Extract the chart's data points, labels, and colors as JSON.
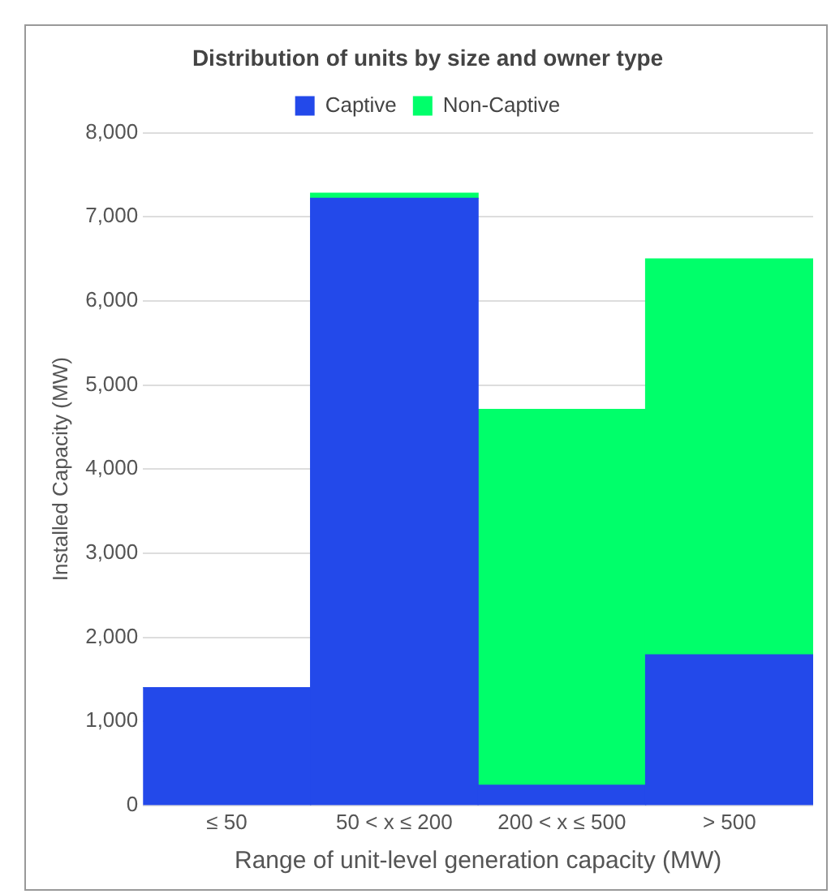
{
  "chart_data": {
    "type": "bar",
    "title": "Distribution of units by size and owner type",
    "xlabel": "Range of unit-level generation capacity (MW)",
    "ylabel": "Installed Capacity (MW)",
    "categories": [
      "≤ 50",
      "50 < x ≤ 200",
      "200 < x ≤ 500",
      "> 500"
    ],
    "stacked": true,
    "series": [
      {
        "name": "Captive",
        "color": "#2349ea",
        "values": [
          1400,
          7220,
          240,
          1790
        ]
      },
      {
        "name": "Non-Captive",
        "color": "#00ff6a",
        "values": [
          0,
          60,
          4470,
          4710
        ]
      }
    ],
    "ylim": [
      0,
      8000
    ],
    "yticks": [
      0,
      {
        "value": 1000,
        "label": "1,000"
      },
      {
        "value": 2000,
        "label": "2,000"
      },
      {
        "value": 3000,
        "label": "3,000"
      },
      {
        "value": 4000,
        "label": "4,000"
      },
      {
        "value": 5000,
        "label": "5,000"
      },
      {
        "value": 6000,
        "label": "6,000"
      },
      {
        "value": 7000,
        "label": "7,000"
      },
      {
        "value": 8000,
        "label": "8,000"
      }
    ],
    "grid": "y",
    "legend": "top"
  }
}
